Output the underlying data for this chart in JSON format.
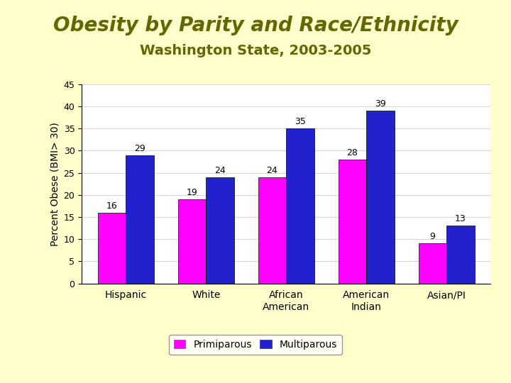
{
  "title": "Obesity by Parity and Race/Ethnicity",
  "subtitle": "Washington State, 2003-2005",
  "categories": [
    "Hispanic",
    "White",
    "African\nAmerican",
    "American\nIndian",
    "Asian/PI"
  ],
  "primiparous": [
    16,
    19,
    24,
    28,
    9
  ],
  "multiparous": [
    29,
    24,
    35,
    39,
    13
  ],
  "primiparous_color": "#FF00FF",
  "multiparous_color": "#2222CC",
  "background_color": "#FFFFCC",
  "chart_background": "#FFFFFF",
  "title_color": "#666600",
  "ylabel": "Percent Obese (BMI> 30)",
  "ylim": [
    0,
    45
  ],
  "yticks": [
    0,
    5,
    10,
    15,
    20,
    25,
    30,
    35,
    40,
    45
  ],
  "legend_labels": [
    "Primiparous",
    "Multiparous"
  ],
  "title_fontsize": 20,
  "subtitle_fontsize": 14,
  "bar_width": 0.35,
  "label_fontsize": 9,
  "ylabel_fontsize": 10,
  "xtick_fontsize": 10,
  "ytick_fontsize": 9
}
